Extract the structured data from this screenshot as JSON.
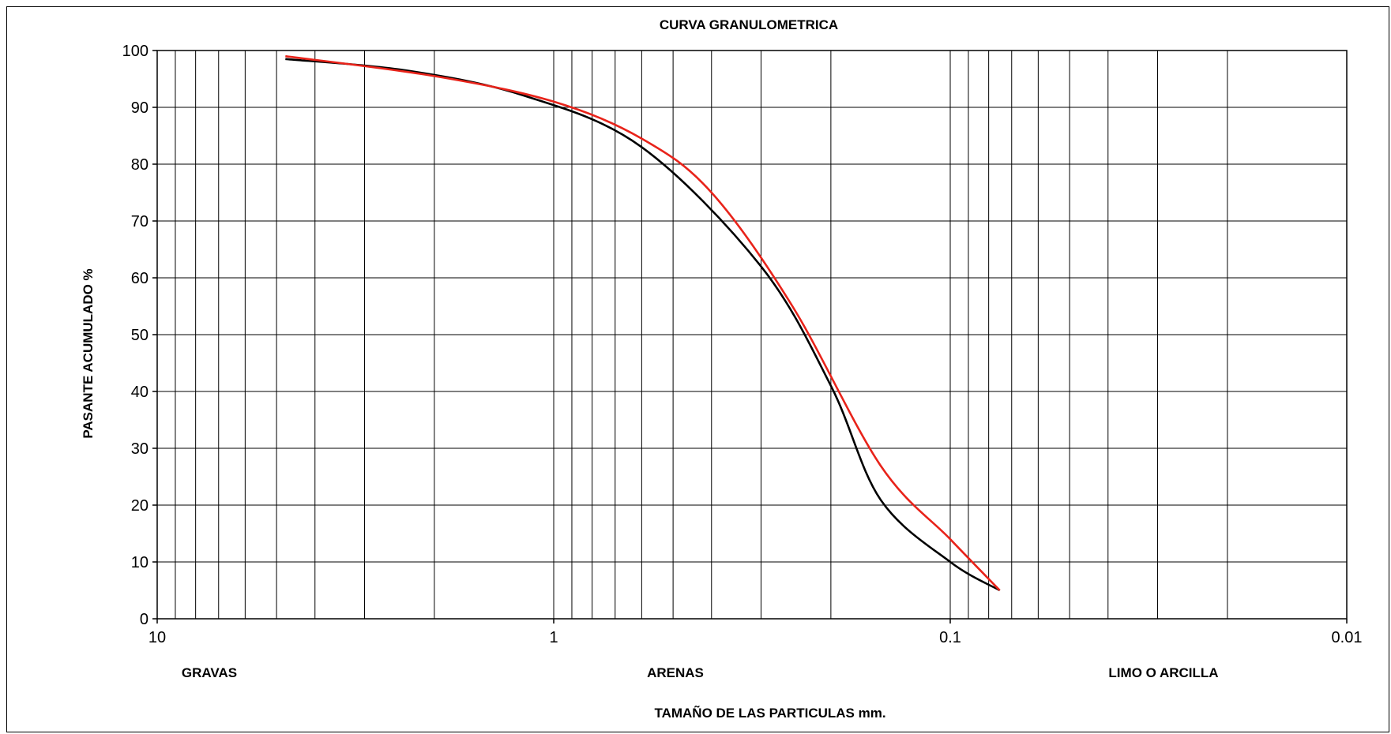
{
  "chart_data": {
    "type": "line",
    "title": "CURVA GRANULOMETRICA",
    "xlabel": "TAMAÑO DE LAS PARTICULAS mm.",
    "ylabel": "PASANTE ACUMULADO %",
    "x_scale": "log",
    "x_reversed": true,
    "xlim": [
      10,
      0.01
    ],
    "ylim": [
      0,
      100
    ],
    "grid": true,
    "x_tick_labels": [
      "10",
      "1",
      "0.1",
      "0.01"
    ],
    "x_ticks": [
      10,
      1,
      0.1,
      0.01
    ],
    "y_tick_labels": [
      "0",
      "10",
      "20",
      "30",
      "40",
      "50",
      "60",
      "70",
      "80",
      "90",
      "100"
    ],
    "y_ticks": [
      0,
      10,
      20,
      30,
      40,
      50,
      60,
      70,
      80,
      90,
      100
    ],
    "x_gridlines": [
      9,
      8,
      7,
      6,
      5,
      4,
      3,
      2,
      0.9,
      0.8,
      0.7,
      0.6,
      0.5,
      0.4,
      0.3,
      0.2,
      0.09,
      0.08,
      0.07,
      0.06,
      0.05,
      0.04,
      0.03,
      0.02
    ],
    "zone_labels": [
      "GRAVAS",
      "ARENAS",
      "LIMO O ARCILLA"
    ],
    "series": [
      {
        "color": "#000000",
        "points": [
          [
            4.75,
            98.5
          ],
          [
            2.36,
            96.5
          ],
          [
            1.18,
            92
          ],
          [
            0.6,
            83
          ],
          [
            0.3,
            62
          ],
          [
            0.2,
            41
          ],
          [
            0.15,
            21
          ],
          [
            0.1,
            10
          ],
          [
            0.075,
            5
          ]
        ]
      },
      {
        "color": "#e8231a",
        "points": [
          [
            4.75,
            99
          ],
          [
            2.0,
            95.5
          ],
          [
            1.0,
            91
          ],
          [
            0.6,
            84.5
          ],
          [
            0.4,
            75
          ],
          [
            0.25,
            55
          ],
          [
            0.15,
            27
          ],
          [
            0.1,
            14
          ],
          [
            0.075,
            5
          ]
        ]
      }
    ]
  }
}
